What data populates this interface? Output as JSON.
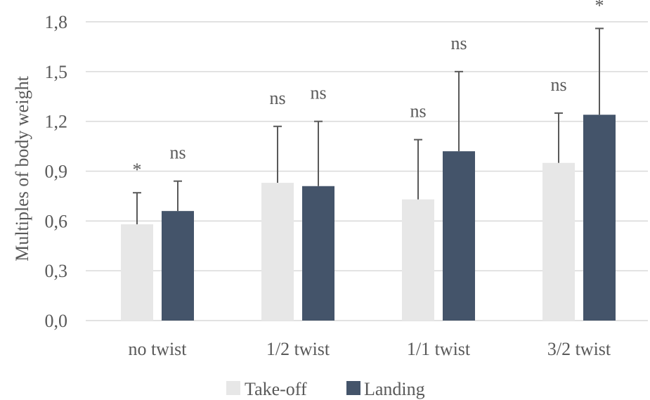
{
  "chart_data": {
    "type": "bar",
    "categories": [
      "no twist",
      "1/2 twist",
      "1/1 twist",
      "3/2 twist"
    ],
    "series": [
      {
        "name": "Take-off",
        "color": "#e7e7e7",
        "values": [
          0.58,
          0.83,
          0.73,
          0.95
        ],
        "errors": [
          0.19,
          0.34,
          0.36,
          0.3
        ],
        "significance": [
          "*",
          "ns",
          "ns",
          "ns"
        ]
      },
      {
        "name": "Landing",
        "color": "#44546a",
        "values": [
          0.66,
          0.81,
          1.02,
          1.24
        ],
        "errors": [
          0.18,
          0.39,
          0.48,
          0.52
        ],
        "significance": [
          "ns",
          "ns",
          "ns",
          "*"
        ]
      }
    ],
    "ylabel": "Multiples of body weight",
    "ylim": [
      0.0,
      1.8
    ],
    "yticks": [
      "0,0",
      "0,3",
      "0,6",
      "0,9",
      "1,2",
      "1,5",
      "1,8"
    ],
    "ytick_values": [
      0.0,
      0.3,
      0.6,
      0.9,
      1.2,
      1.5,
      1.8
    ],
    "grid": true,
    "legend": "bottom"
  },
  "colors": {
    "grid": "#d9d9d9",
    "error_bar": "#595959",
    "text": "#595959"
  }
}
